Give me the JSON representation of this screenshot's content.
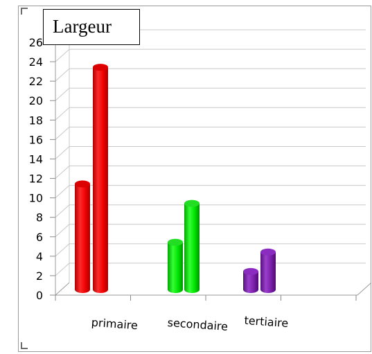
{
  "chart_data": {
    "type": "bar",
    "title": "Largeur",
    "xlabel": "",
    "ylabel": "",
    "categories": [
      "primaire",
      "secondaire",
      "tertiaire"
    ],
    "series": [
      {
        "values": [
          12,
          6,
          3
        ]
      },
      {
        "values": [
          24,
          10,
          5
        ]
      }
    ],
    "category_colors": [
      "#ff0000",
      "#00dd00",
      "#7a1fa8"
    ],
    "ylim": [
      0,
      26
    ],
    "yticks": [
      "0",
      "2",
      "4",
      "6",
      "8",
      "10",
      "12",
      "14",
      "16",
      "18",
      "20",
      "22",
      "24",
      "26"
    ],
    "grid": true,
    "style": "3d-cylinder"
  }
}
